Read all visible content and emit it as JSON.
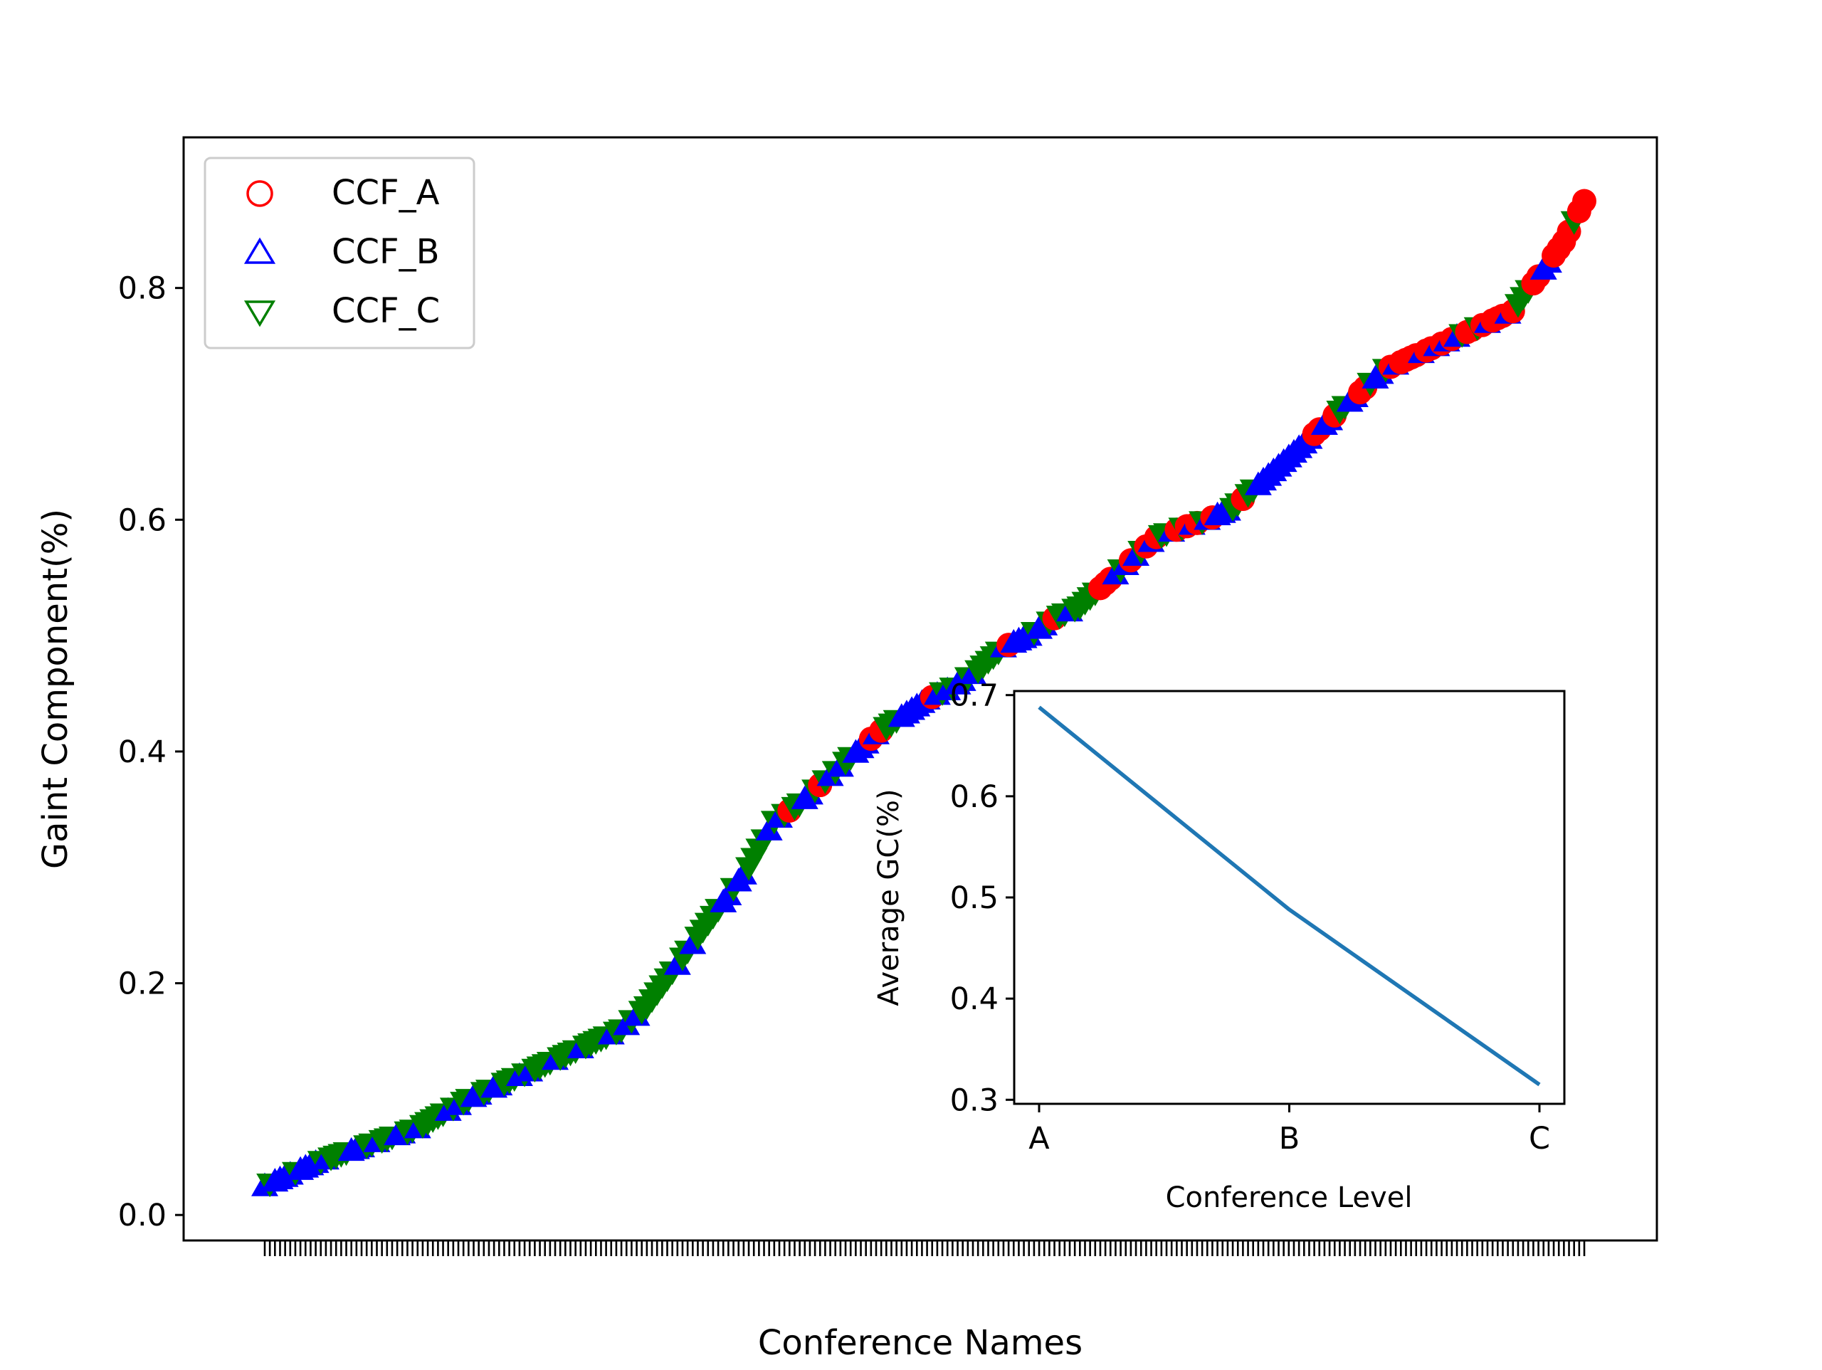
{
  "chart_data": [
    {
      "type": "scatter",
      "title": "",
      "xlabel": "Conference Names",
      "ylabel": "Gaint Component(%)",
      "yticks": [
        "0.0",
        "0.2",
        "0.4",
        "0.6",
        "0.8"
      ],
      "ylim": [
        -0.022,
        0.93
      ],
      "x_count": 260,
      "legend": {
        "placement": "upper-left",
        "entries": [
          {
            "label": "CCF_A",
            "marker": "circle",
            "color": "#ff0000"
          },
          {
            "label": "CCF_B",
            "marker": "triangle-up",
            "color": "#0000ff"
          },
          {
            "label": "CCF_C",
            "marker": "triangle-down",
            "color": "#008000"
          }
        ]
      },
      "curve": [
        [
          0,
          0.025
        ],
        [
          10,
          0.045
        ],
        [
          20,
          0.06
        ],
        [
          30,
          0.075
        ],
        [
          40,
          0.1
        ],
        [
          50,
          0.12
        ],
        [
          60,
          0.14
        ],
        [
          70,
          0.16
        ],
        [
          75,
          0.18
        ],
        [
          80,
          0.21
        ],
        [
          85,
          0.24
        ],
        [
          90,
          0.27
        ],
        [
          95,
          0.3
        ],
        [
          100,
          0.34
        ],
        [
          105,
          0.355
        ],
        [
          110,
          0.375
        ],
        [
          115,
          0.395
        ],
        [
          120,
          0.415
        ],
        [
          125,
          0.43
        ],
        [
          130,
          0.445
        ],
        [
          135,
          0.455
        ],
        [
          140,
          0.47
        ],
        [
          145,
          0.49
        ],
        [
          150,
          0.5
        ],
        [
          155,
          0.515
        ],
        [
          160,
          0.525
        ],
        [
          165,
          0.545
        ],
        [
          170,
          0.565
        ],
        [
          175,
          0.585
        ],
        [
          180,
          0.593
        ],
        [
          185,
          0.6
        ],
        [
          190,
          0.61
        ],
        [
          195,
          0.63
        ],
        [
          200,
          0.65
        ],
        [
          205,
          0.67
        ],
        [
          210,
          0.69
        ],
        [
          215,
          0.71
        ],
        [
          220,
          0.73
        ],
        [
          225,
          0.74
        ],
        [
          230,
          0.75
        ],
        [
          235,
          0.76
        ],
        [
          240,
          0.77
        ],
        [
          245,
          0.78
        ],
        [
          250,
          0.81
        ],
        [
          255,
          0.84
        ],
        [
          259,
          0.875
        ]
      ],
      "category_bands": [
        {
          "from": 0,
          "to": 62,
          "C": 0.62,
          "B": 0.38,
          "A": 0.0
        },
        {
          "from": 63,
          "to": 100,
          "C": 0.68,
          "B": 0.32,
          "A": 0.0
        },
        {
          "from": 101,
          "to": 160,
          "C": 0.42,
          "B": 0.42,
          "A": 0.16
        },
        {
          "from": 161,
          "to": 215,
          "C": 0.3,
          "B": 0.4,
          "A": 0.3
        },
        {
          "from": 216,
          "to": 259,
          "C": 0.24,
          "B": 0.38,
          "A": 0.38
        }
      ]
    },
    {
      "type": "line",
      "title": "",
      "xlabel": "Conference Level",
      "ylabel": "Average GC(%)",
      "categories": [
        "A",
        "B",
        "C"
      ],
      "yticks": [
        "0.3",
        "0.4",
        "0.5",
        "0.6",
        "0.7"
      ],
      "ylim": [
        0.296,
        0.704
      ],
      "series": [
        {
          "values": [
            0.688,
            0.488,
            0.315
          ],
          "color": "#1f77b4"
        }
      ]
    }
  ]
}
